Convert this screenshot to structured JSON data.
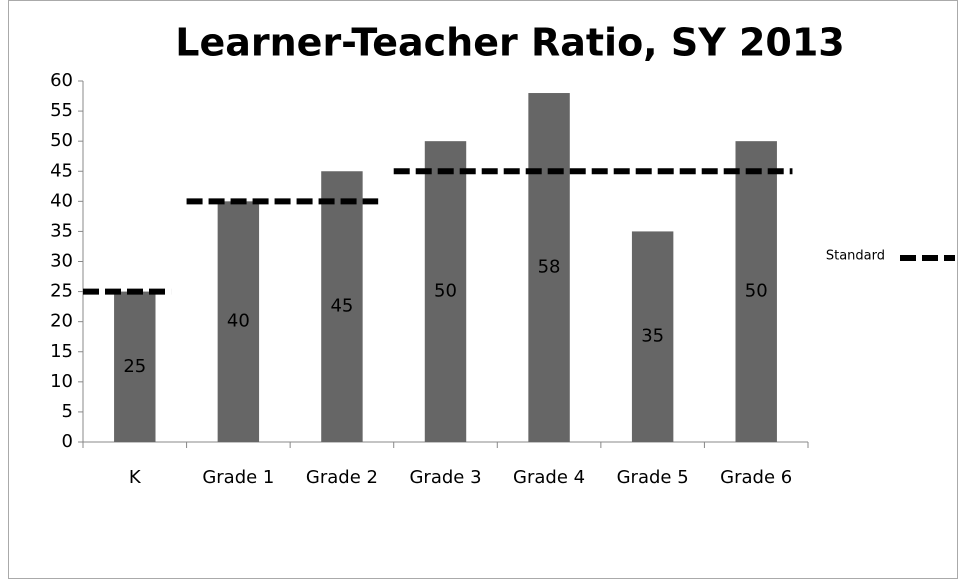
{
  "chart_data": {
    "type": "bar",
    "title": "Learner-Teacher Ratio, SY 2013",
    "categories": [
      "K",
      "Grade 1",
      "Grade 2",
      "Grade 3",
      "Grade 4",
      "Grade 5",
      "Grade 6"
    ],
    "values": [
      25,
      40,
      45,
      50,
      58,
      35,
      50
    ],
    "color": "#666666",
    "series": [
      {
        "name": "Standard",
        "color": "#000000",
        "values": [
          25,
          40,
          40,
          45,
          45,
          45,
          45
        ]
      }
    ],
    "ylim": [
      0,
      60
    ],
    "yticks": [
      0,
      5,
      10,
      15,
      20,
      25,
      30,
      35,
      40,
      45,
      50,
      55,
      60
    ],
    "grid": false,
    "legend": "right"
  }
}
